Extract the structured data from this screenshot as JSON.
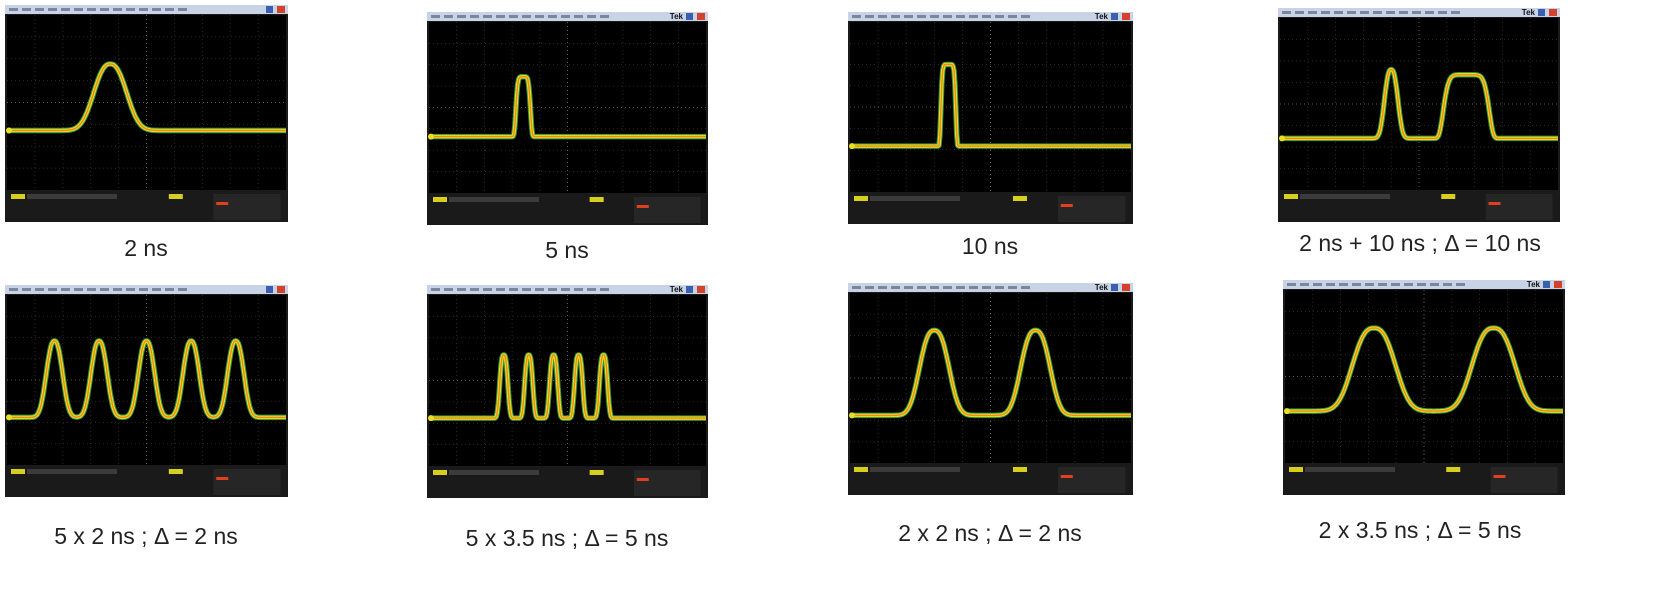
{
  "panels": [
    {
      "caption": "2 ns"
    },
    {
      "caption": "5 ns",
      "brand": "Tek"
    },
    {
      "caption": "10 ns",
      "brand": "Tek"
    },
    {
      "caption": "2 ns + 10 ns ; Δ = 10 ns",
      "brand": "Tek"
    },
    {
      "caption": "5 x 2 ns ; Δ = 2 ns"
    },
    {
      "caption": "5 x 3.5 ns ; Δ = 5 ns",
      "brand": "Tek"
    },
    {
      "caption": "2 x 2 ns ; Δ = 2 ns",
      "brand": "Tek"
    },
    {
      "caption": "2 x 3.5 ns ; Δ = 5 ns",
      "brand": "Tek"
    }
  ]
}
